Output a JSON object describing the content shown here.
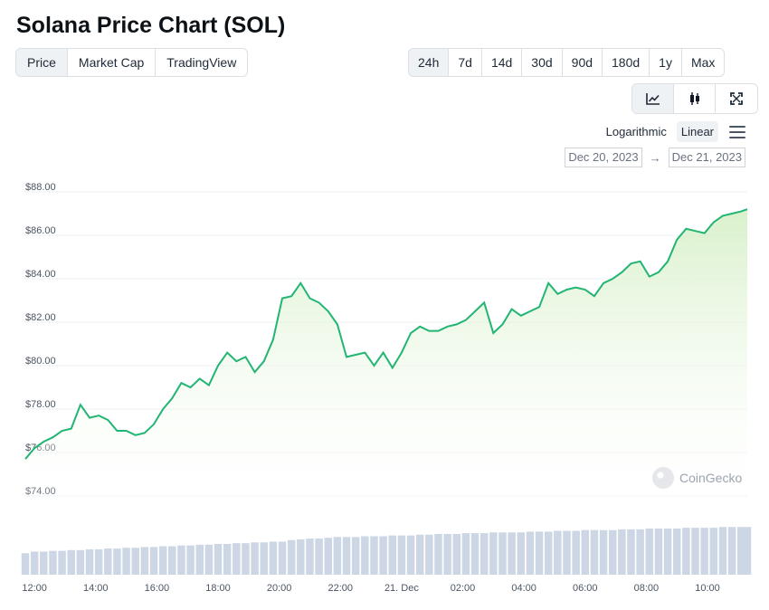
{
  "header": {
    "title": "Solana Price Chart (SOL)"
  },
  "metric_tabs": [
    "Price",
    "Market Cap",
    "TradingView"
  ],
  "metric_active": 0,
  "range_tabs": [
    "24h",
    "7d",
    "14d",
    "30d",
    "90d",
    "180d",
    "1y",
    "Max"
  ],
  "range_active": 0,
  "view_tabs": [
    {
      "icon": "line-chart-icon"
    },
    {
      "icon": "candlestick-icon"
    },
    {
      "icon": "fullscreen-icon"
    }
  ],
  "scale": {
    "log_label": "Logarithmic",
    "linear_label": "Linear",
    "active": "Linear"
  },
  "date_range": {
    "from": "Dec 20, 2023",
    "arrow": "→",
    "to": "Dec 21, 2023"
  },
  "watermark": "CoinGecko",
  "colors": {
    "line": "#22b573",
    "area_top": "#d7f0c9",
    "volume": "#cdd6e4",
    "grid": "#eef0f3"
  },
  "chart_data": {
    "type": "area",
    "title": "",
    "ylabel": "",
    "xlabel": "",
    "ylim": [
      73.5,
      88.5
    ],
    "y_ticks": [
      74,
      76,
      78,
      80,
      82,
      84,
      86,
      88
    ],
    "y_tick_labels": [
      "$74.00",
      "$76.00",
      "$78.00",
      "$80.00",
      "$82.00",
      "$84.00",
      "$86.00",
      "$88.00"
    ],
    "x_range_hours": [
      11.7,
      35.3
    ],
    "x_ticks": [
      12,
      14,
      16,
      18,
      20,
      22,
      24,
      26,
      28,
      30,
      32,
      34
    ],
    "x_tick_labels": [
      "12:00",
      "14:00",
      "16:00",
      "18:00",
      "20:00",
      "22:00",
      "21. Dec",
      "02:00",
      "04:00",
      "06:00",
      "08:00",
      "10:00"
    ],
    "grid": true,
    "series": [
      {
        "x": [
          11.7,
          12.0,
          12.3,
          12.6,
          12.9,
          13.2,
          13.5,
          13.8,
          14.1,
          14.4,
          14.7,
          15.0,
          15.3,
          15.6,
          15.9,
          16.2,
          16.5,
          16.8,
          17.1,
          17.4,
          17.7,
          18.0,
          18.3,
          18.6,
          18.9,
          19.2,
          19.5,
          19.8,
          20.1,
          20.4,
          20.7,
          21.0,
          21.3,
          21.6,
          21.9,
          22.2,
          22.5,
          22.8,
          23.1,
          23.4,
          23.7,
          24.0,
          24.3,
          24.6,
          24.9,
          25.2,
          25.5,
          25.8,
          26.1,
          26.4,
          26.7,
          27.0,
          27.3,
          27.6,
          27.9,
          28.2,
          28.5,
          28.8,
          29.1,
          29.4,
          29.7,
          30.0,
          30.3,
          30.6,
          30.9,
          31.2,
          31.5,
          31.8,
          32.1,
          32.4,
          32.7,
          33.0,
          33.3,
          33.6,
          33.9,
          34.2,
          34.5,
          34.8,
          35.1,
          35.3
        ],
        "y": [
          75.7,
          76.2,
          76.5,
          76.7,
          77.0,
          77.1,
          78.2,
          77.6,
          77.7,
          77.5,
          77.0,
          77.0,
          76.8,
          76.9,
          77.3,
          78.0,
          78.5,
          79.2,
          79.0,
          79.4,
          79.1,
          80.0,
          80.6,
          80.2,
          80.4,
          79.7,
          80.2,
          81.2,
          83.1,
          83.2,
          83.8,
          83.1,
          82.9,
          82.5,
          81.9,
          80.4,
          80.5,
          80.6,
          80.0,
          80.6,
          79.9,
          80.6,
          81.5,
          81.8,
          81.6,
          81.6,
          81.8,
          81.9,
          82.1,
          82.5,
          82.9,
          81.5,
          81.9,
          82.6,
          82.3,
          82.5,
          82.7,
          83.8,
          83.3,
          83.5,
          83.6,
          83.5,
          83.2,
          83.8,
          84.0,
          84.3,
          84.7,
          84.8,
          84.1,
          84.3,
          84.8,
          85.8,
          86.3,
          86.2,
          86.1,
          86.6,
          86.9,
          87.0,
          87.1,
          87.2
        ],
        "volume": [
          0.28,
          0.3,
          0.3,
          0.31,
          0.31,
          0.32,
          0.32,
          0.33,
          0.33,
          0.34,
          0.34,
          0.35,
          0.35,
          0.36,
          0.36,
          0.37,
          0.37,
          0.38,
          0.38,
          0.39,
          0.39,
          0.4,
          0.4,
          0.41,
          0.41,
          0.42,
          0.42,
          0.43,
          0.43,
          0.45,
          0.46,
          0.47,
          0.47,
          0.48,
          0.49,
          0.49,
          0.49,
          0.5,
          0.5,
          0.5,
          0.51,
          0.51,
          0.51,
          0.52,
          0.52,
          0.53,
          0.53,
          0.53,
          0.54,
          0.54,
          0.54,
          0.55,
          0.55,
          0.55,
          0.55,
          0.56,
          0.56,
          0.56,
          0.57,
          0.57,
          0.57,
          0.58,
          0.58,
          0.58,
          0.58,
          0.59,
          0.59,
          0.59,
          0.6,
          0.6,
          0.6,
          0.6,
          0.61,
          0.61,
          0.61,
          0.61,
          0.62,
          0.62,
          0.62,
          0.62
        ]
      }
    ]
  }
}
